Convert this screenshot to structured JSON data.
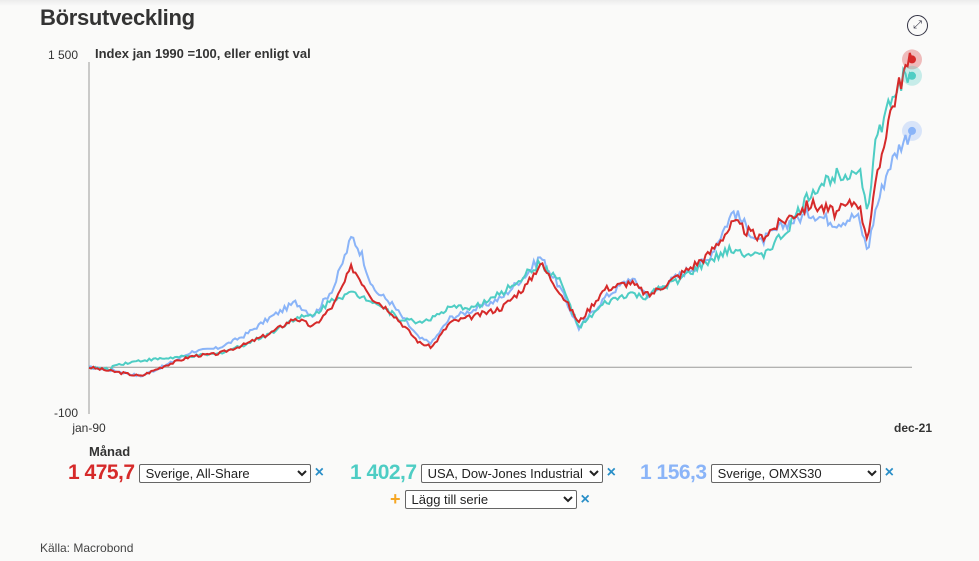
{
  "header": {
    "title": "Börsutveckling",
    "expand_icon": "expand-arrows-icon"
  },
  "chart_data": {
    "type": "line",
    "title": "Börsutveckling",
    "subtitle": "Index jan 1990 =100, eller enligt val",
    "xlabel": "Månad",
    "ylim": [
      -100,
      1500
    ],
    "y_ticks": [
      "1 500",
      "-100"
    ],
    "x_ticks": [
      "jan-90",
      "dec-21"
    ],
    "x_range": [
      1990.0,
      2021.92
    ],
    "reference_line": 100,
    "series": [
      {
        "name": "Sverige, All-Share",
        "color": "#d62a2a",
        "last": "1 475,7",
        "points": [
          [
            1990,
            100
          ],
          [
            1991,
            80
          ],
          [
            1992,
            60
          ],
          [
            1993,
            110
          ],
          [
            1994,
            150
          ],
          [
            1995,
            160
          ],
          [
            1996,
            200
          ],
          [
            1997,
            250
          ],
          [
            1998,
            320
          ],
          [
            1998.7,
            280
          ],
          [
            1999.5,
            380
          ],
          [
            2000.2,
            550
          ],
          [
            2000.6,
            480
          ],
          [
            2001,
            410
          ],
          [
            2001.7,
            350
          ],
          [
            2002.8,
            210
          ],
          [
            2003.3,
            190
          ],
          [
            2004,
            300
          ],
          [
            2005,
            330
          ],
          [
            2006,
            365
          ],
          [
            2007,
            470
          ],
          [
            2007.5,
            565
          ],
          [
            2008.2,
            450
          ],
          [
            2009,
            300
          ],
          [
            2010,
            450
          ],
          [
            2011,
            480
          ],
          [
            2011.7,
            420
          ],
          [
            2013,
            520
          ],
          [
            2014,
            600
          ],
          [
            2015,
            745
          ],
          [
            2016,
            675
          ],
          [
            2017,
            760
          ],
          [
            2018,
            830
          ],
          [
            2019,
            790
          ],
          [
            2019.8,
            850
          ],
          [
            2020.2,
            680
          ],
          [
            2020.5,
            900
          ],
          [
            2021,
            1210
          ],
          [
            2021.5,
            1390
          ],
          [
            2021.92,
            1475.7
          ]
        ]
      },
      {
        "name": "USA, Dow-Jones Industrial",
        "color": "#4ecdc4",
        "last": "1 402,7",
        "points": [
          [
            1990,
            100
          ],
          [
            1990.8,
            90
          ],
          [
            1991,
            110
          ],
          [
            1992,
            130
          ],
          [
            1993,
            140
          ],
          [
            1994,
            150
          ],
          [
            1995,
            160
          ],
          [
            1996,
            200
          ],
          [
            1997,
            250
          ],
          [
            1998,
            320
          ],
          [
            1998.7,
            330
          ],
          [
            1999.5,
            410
          ],
          [
            2000.2,
            430
          ],
          [
            2001,
            400
          ],
          [
            2002,
            320
          ],
          [
            2002.8,
            300
          ],
          [
            2003.5,
            330
          ],
          [
            2004,
            365
          ],
          [
            2005,
            370
          ],
          [
            2006,
            430
          ],
          [
            2007,
            520
          ],
          [
            2007.5,
            565
          ],
          [
            2008.3,
            480
          ],
          [
            2009,
            275
          ],
          [
            2010,
            385
          ],
          [
            2011,
            430
          ],
          [
            2011.5,
            410
          ],
          [
            2013,
            500
          ],
          [
            2014,
            570
          ],
          [
            2015,
            630
          ],
          [
            2016,
            590
          ],
          [
            2017,
            700
          ],
          [
            2018,
            880
          ],
          [
            2019,
            965
          ],
          [
            2019.9,
            980
          ],
          [
            2020.2,
            800
          ],
          [
            2020.5,
            1100
          ],
          [
            2021,
            1260
          ],
          [
            2021.5,
            1380
          ],
          [
            2021.92,
            1402.7
          ]
        ]
      },
      {
        "name": "Sverige, OMXS30",
        "color": "#8ab4f8",
        "last": "1 156,3",
        "points": [
          [
            1990,
            100
          ],
          [
            1991,
            85
          ],
          [
            1992,
            60
          ],
          [
            1993,
            110
          ],
          [
            1994,
            170
          ],
          [
            1995,
            185
          ],
          [
            1996,
            240
          ],
          [
            1997,
            320
          ],
          [
            1998,
            390
          ],
          [
            1998.7,
            330
          ],
          [
            1999.5,
            460
          ],
          [
            2000.2,
            685
          ],
          [
            2000.6,
            600
          ],
          [
            2001,
            450
          ],
          [
            2001.7,
            390
          ],
          [
            2002.8,
            230
          ],
          [
            2003.3,
            210
          ],
          [
            2004,
            320
          ],
          [
            2005,
            360
          ],
          [
            2006,
            410
          ],
          [
            2007,
            520
          ],
          [
            2007.5,
            595
          ],
          [
            2008.2,
            470
          ],
          [
            2009,
            275
          ],
          [
            2010,
            410
          ],
          [
            2011,
            500
          ],
          [
            2011.7,
            420
          ],
          [
            2013,
            520
          ],
          [
            2014,
            580
          ],
          [
            2015,
            800
          ],
          [
            2016,
            655
          ],
          [
            2017,
            740
          ],
          [
            2018,
            790
          ],
          [
            2019,
            745
          ],
          [
            2019.8,
            780
          ],
          [
            2020.2,
            620
          ],
          [
            2020.5,
            800
          ],
          [
            2021,
            990
          ],
          [
            2021.5,
            1100
          ],
          [
            2021.92,
            1156.3
          ]
        ]
      }
    ]
  },
  "controls": {
    "series": [
      {
        "value": "1 475,7",
        "selected": "Sverige, All-Share",
        "color": "#d62a2a"
      },
      {
        "value": "1 402,7",
        "selected": "USA, Dow-Jones Industrial",
        "color": "#4ecdc4"
      },
      {
        "value": "1 156,3",
        "selected": "Sverige, OMXS30",
        "color": "#8ab4f8"
      }
    ],
    "add_series": "Lägg till serie",
    "remove": "×",
    "add": "+"
  },
  "source": "Källa: Macrobond"
}
